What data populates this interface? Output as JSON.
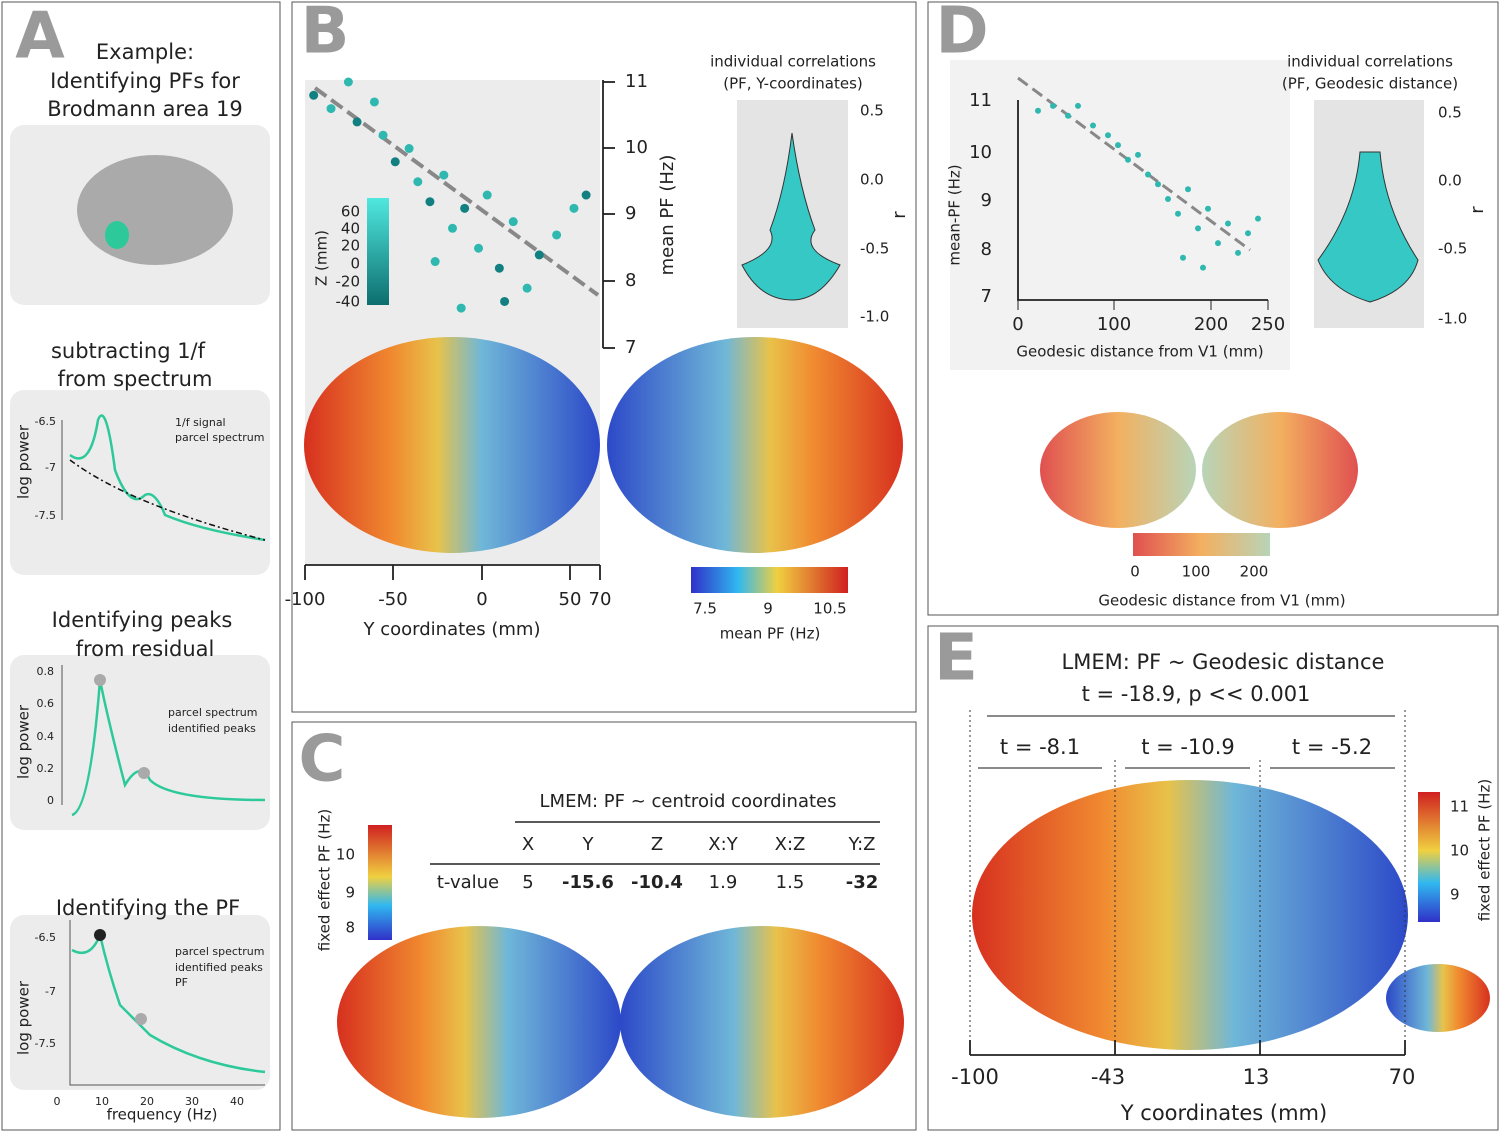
{
  "panels": {
    "A": {
      "letter": "A",
      "example": [
        "Example:",
        "Identifying PFs for",
        "Brodmann area 19"
      ],
      "step1": {
        "title": [
          "subtracting 1/f",
          "from spectrum"
        ],
        "ylabel": "log power",
        "yticks": [
          "-6.5",
          "-7",
          "-7.5"
        ],
        "legend": [
          "1/f signal",
          "parcel spectrum"
        ]
      },
      "step2": {
        "title": [
          "Identifying peaks",
          "from residual"
        ],
        "ylabel": "log power",
        "yticks": [
          "0.8",
          "0.6",
          "0.4",
          "0.2",
          "0"
        ],
        "legend": [
          "parcel spectrum",
          "identified peaks"
        ]
      },
      "step3": {
        "title": "Identifying the PF",
        "ylabel": "log power",
        "yticks": [
          "-6.5",
          "-7",
          "-7.5"
        ],
        "xticks": [
          "0",
          "10",
          "20",
          "30",
          "40"
        ],
        "xlabel": "frequency (Hz)",
        "legend": [
          "parcel spectrum",
          "identified peaks",
          "PF"
        ]
      }
    },
    "B": {
      "letter": "B",
      "scatter": {
        "xlabel": "Y coordinates (mm)",
        "xticks": [
          "-100",
          "-50",
          "0",
          "50",
          "70"
        ],
        "ylabel": "mean PF (Hz)",
        "yticks": [
          "11",
          "10",
          "9",
          "8",
          "7"
        ],
        "zlabel": "Z (mm)",
        "zticks": [
          "60",
          "40",
          "20",
          "0",
          "-20",
          "-40"
        ],
        "points": [
          [
            -95,
            10.8
          ],
          [
            -85,
            10.6
          ],
          [
            -75,
            11
          ],
          [
            -70,
            10.4
          ],
          [
            -60,
            10.7
          ],
          [
            -55,
            10.2
          ],
          [
            -48,
            9.8
          ],
          [
            -40,
            10
          ],
          [
            -35,
            9.5
          ],
          [
            -28,
            9.2
          ],
          [
            -20,
            9.6
          ],
          [
            -15,
            8.8
          ],
          [
            -8,
            9.1
          ],
          [
            0,
            8.5
          ],
          [
            5,
            9.3
          ],
          [
            12,
            8.2
          ],
          [
            20,
            8.9
          ],
          [
            28,
            7.9
          ],
          [
            35,
            8.4
          ],
          [
            45,
            8.7
          ],
          [
            55,
            9.1
          ],
          [
            62,
            9.3
          ],
          [
            -10,
            7.6
          ],
          [
            -25,
            8.3
          ],
          [
            15,
            7.7
          ]
        ]
      },
      "violin": {
        "title": [
          "individual correlations",
          "(PF, Y-coordinates)"
        ],
        "yticks": [
          "0.5",
          "0.0",
          "-0.5",
          "-1.0"
        ],
        "ylabel": "r"
      },
      "colorbar": {
        "ticks": [
          "7.5",
          "9",
          "10.5"
        ],
        "label": "mean PF (Hz)"
      }
    },
    "C": {
      "letter": "C",
      "title": "LMEM: PF ~ centroid coordinates",
      "headers": [
        "X",
        "Y",
        "Z",
        "X:Y",
        "X:Z",
        "Y:Z"
      ],
      "row_label": "t-value",
      "values": [
        "5",
        "-15.6",
        "-10.4",
        "1.9",
        "1.5",
        "-32"
      ],
      "colorbar": {
        "ticks": [
          "10",
          "9",
          "8"
        ],
        "label": "fixed effect PF (Hz)"
      }
    },
    "D": {
      "letter": "D",
      "scatter": {
        "xlabel": "Geodesic distance from V1 (mm)",
        "xticks": [
          "0",
          "100",
          "200",
          "250"
        ],
        "ylabel": "mean-PF (Hz)",
        "yticks": [
          "11",
          "10",
          "9",
          "8",
          "7"
        ],
        "points": [
          [
            20,
            10.8
          ],
          [
            35,
            10.9
          ],
          [
            50,
            10.7
          ],
          [
            60,
            10.9
          ],
          [
            75,
            10.5
          ],
          [
            90,
            10.3
          ],
          [
            100,
            10.1
          ],
          [
            110,
            9.8
          ],
          [
            120,
            9.9
          ],
          [
            130,
            9.5
          ],
          [
            140,
            9.3
          ],
          [
            150,
            9.0
          ],
          [
            160,
            8.7
          ],
          [
            170,
            9.2
          ],
          [
            180,
            8.4
          ],
          [
            190,
            8.8
          ],
          [
            200,
            8.1
          ],
          [
            210,
            8.5
          ],
          [
            220,
            7.9
          ],
          [
            230,
            8.3
          ],
          [
            240,
            8.6
          ],
          [
            165,
            7.8
          ],
          [
            185,
            7.6
          ]
        ]
      },
      "violin": {
        "title": [
          "individual correlations",
          "(PF, Geodesic distance)"
        ],
        "yticks": [
          "0.5",
          "0.0",
          "-0.5",
          "-1.0"
        ],
        "ylabel": "r"
      },
      "colorbar": {
        "ticks": [
          "0",
          "100",
          "200"
        ],
        "label": "Geodesic distance from V1 (mm)"
      }
    },
    "E": {
      "letter": "E",
      "title": [
        "LMEM: PF ~ Geodesic distance",
        "t = -18.9, p << 0.001"
      ],
      "segments": [
        "t = -8.1",
        "t = -10.9",
        "t = -5.2"
      ],
      "xticks": [
        "-100",
        "-43",
        "13",
        "70"
      ],
      "xlabel": "Y coordinates (mm)",
      "colorbar": {
        "ticks": [
          "11",
          "10",
          "9"
        ],
        "label": "fixed effect PF (Hz)"
      }
    }
  }
}
